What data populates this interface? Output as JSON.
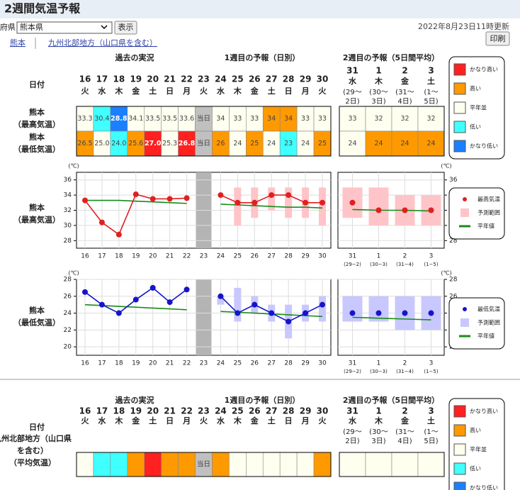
{
  "header": {
    "title": "2週間気温予報",
    "pref_label": "府県",
    "pref_select": "熊本県",
    "show_button": "表示",
    "updated": "2022年8月23日11時更新",
    "print_button": "印刷"
  },
  "links": [
    "熊本",
    "九州北部地方（山口県を含む）"
  ],
  "sections": [
    "過去の実況",
    "1週目の予報（日別）",
    "2週目の予報（5日間平均）"
  ],
  "date_label": "日付",
  "days": [
    {
      "date": "16",
      "weekday": "火"
    },
    {
      "date": "17",
      "weekday": "水"
    },
    {
      "date": "18",
      "weekday": "木"
    },
    {
      "date": "19",
      "weekday": "金"
    },
    {
      "date": "20",
      "weekday": "土"
    },
    {
      "date": "21",
      "weekday": "日"
    },
    {
      "date": "22",
      "weekday": "月"
    },
    {
      "date": "23",
      "weekday": "火"
    },
    {
      "date": "24",
      "weekday": "水"
    },
    {
      "date": "25",
      "weekday": "木"
    },
    {
      "date": "26",
      "weekday": "金"
    },
    {
      "date": "27",
      "weekday": "土"
    },
    {
      "date": "28",
      "weekday": "日"
    },
    {
      "date": "29",
      "weekday": "月"
    },
    {
      "date": "30",
      "weekday": "火"
    }
  ],
  "week2_days": [
    {
      "date": "31",
      "weekday": "水",
      "period": [
        "(29～",
        "2日)"
      ]
    },
    {
      "date": "1",
      "weekday": "木",
      "period": [
        "(30～",
        "3日)"
      ]
    },
    {
      "date": "2",
      "weekday": "金",
      "period": [
        "(31～",
        "4日)"
      ]
    },
    {
      "date": "3",
      "weekday": "土",
      "period": [
        "(1～",
        "5日)"
      ]
    }
  ],
  "legend": [
    {
      "label": "かなり高い",
      "color": "#ff2020"
    },
    {
      "label": "高い",
      "color": "#ff9900"
    },
    {
      "label": "平年並",
      "color": "#fffff0"
    },
    {
      "label": "低い",
      "color": "#40ffff"
    },
    {
      "label": "かなり低い",
      "color": "#1a80ff"
    }
  ],
  "tables": [
    {
      "rows": [
        {
          "label": [
            "熊本",
            "（最高気温）"
          ],
          "cells": [
            {
              "text": "33.3",
              "color": "#fffff0"
            },
            {
              "text": "30.4",
              "color": "#40ffff"
            },
            {
              "text": "28.8",
              "color": "#1a80ff"
            },
            {
              "text": "34.1",
              "color": "#fffff0"
            },
            {
              "text": "33.5",
              "color": "#fffff0"
            },
            {
              "text": "33.5",
              "color": "#fffff0"
            },
            {
              "text": "33.6",
              "color": "#fffff0"
            },
            {
              "text": "当日",
              "color": "#c0c0c0"
            },
            {
              "text": "34",
              "color": "#fffff0"
            },
            {
              "text": "33",
              "color": "#fffff0"
            },
            {
              "text": "33",
              "color": "#fffff0"
            },
            {
              "text": "34",
              "color": "#ff9900"
            },
            {
              "text": "34",
              "color": "#ff9900"
            },
            {
              "text": "33",
              "color": "#fffff0"
            },
            {
              "text": "33",
              "color": "#fffff0"
            }
          ],
          "week2_cells": [
            {
              "text": "33",
              "color": "#fffff0"
            },
            {
              "text": "32",
              "color": "#fffff0"
            },
            {
              "text": "32",
              "color": "#fffff0"
            },
            {
              "text": "32",
              "color": "#fffff0"
            }
          ]
        },
        {
          "label": [
            "熊本",
            "（最低気温）"
          ],
          "cells": [
            {
              "text": "26.5",
              "color": "#ff9900"
            },
            {
              "text": "25.0",
              "color": "#fffff0"
            },
            {
              "text": "24.0",
              "color": "#40ffff"
            },
            {
              "text": "25.6",
              "color": "#ff9900"
            },
            {
              "text": "27.0",
              "color": "#ff2020"
            },
            {
              "text": "25.3",
              "color": "#fffff0"
            },
            {
              "text": "26.8",
              "color": "#ff2020"
            },
            {
              "text": "当日",
              "color": "#c0c0c0"
            },
            {
              "text": "26",
              "color": "#ff9900"
            },
            {
              "text": "24",
              "color": "#fffff0"
            },
            {
              "text": "25",
              "color": "#ff9900"
            },
            {
              "text": "24",
              "color": "#fffff0"
            },
            {
              "text": "23",
              "color": "#40ffff"
            },
            {
              "text": "24",
              "color": "#fffff0"
            },
            {
              "text": "25",
              "color": "#ff9900"
            }
          ],
          "week2_cells": [
            {
              "text": "24",
              "color": "#fffff0"
            },
            {
              "text": "24",
              "color": "#ff9900"
            },
            {
              "text": "24",
              "color": "#ff9900"
            },
            {
              "text": "24",
              "color": "#ff9900"
            }
          ]
        }
      ]
    },
    {
      "rows": [
        {
          "label": [
            "九州北部地方（山口県",
            "を含む）",
            "（平均気温）"
          ],
          "cells": [
            {
              "color": "#fffff0"
            },
            {
              "color": "#40ffff"
            },
            {
              "color": "#40ffff"
            },
            {
              "color": "#ff9900"
            },
            {
              "color": "#ff2020"
            },
            {
              "color": "#ff9900"
            },
            {
              "color": "#ff9900"
            },
            {
              "text": "当日",
              "color": "#c0c0c0"
            },
            {
              "color": "#ff9900"
            },
            {
              "color": "#fffff0"
            },
            {
              "color": "#fffff0"
            },
            {
              "color": "#fffff0"
            },
            {
              "color": "#fffff0"
            },
            {
              "color": "#fffff0"
            },
            {
              "color": "#ff9900"
            }
          ],
          "week2_cells": [
            {
              "color": "#fffff0"
            },
            {
              "color": "#fffff0"
            },
            {
              "color": "#fffff0"
            },
            {
              "color": "#fffff0"
            }
          ]
        }
      ]
    }
  ],
  "chart_data": [
    {
      "type": "line",
      "row_label": [
        "熊本",
        "（最高気温）"
      ],
      "unit": "(℃)",
      "grid": true,
      "categories": [
        "16",
        "17",
        "18",
        "19",
        "20",
        "21",
        "22",
        "23",
        "24",
        "25",
        "26",
        "27",
        "28",
        "29",
        "30"
      ],
      "week2_categories": [
        "31",
        "1",
        "2",
        "3"
      ],
      "week2_subcategories": [
        "(29−2)",
        "(30−3)",
        "(31−4)",
        "(1−5)"
      ],
      "ylim": [
        27,
        37
      ],
      "yticks": [
        28,
        30,
        32,
        34,
        36
      ],
      "series": [
        {
          "name": "最高気温",
          "color": "#e02020",
          "values": [
            33.3,
            30.4,
            28.8,
            34.1,
            33.5,
            33.5,
            33.6,
            null,
            34,
            33,
            33,
            34,
            34,
            33,
            33
          ],
          "week2_values": [
            33,
            32,
            32,
            32
          ]
        },
        {
          "name": "予測範囲",
          "color": "#ffc4c8",
          "low": [
            null,
            null,
            null,
            null,
            null,
            null,
            null,
            null,
            null,
            30,
            31,
            32,
            31,
            31,
            30
          ],
          "high": [
            null,
            null,
            null,
            null,
            null,
            null,
            null,
            null,
            null,
            35,
            35,
            35,
            35,
            35,
            35
          ],
          "week2_low": [
            31,
            30,
            30,
            30
          ],
          "week2_high": [
            35,
            35,
            34,
            34
          ]
        },
        {
          "name": "平年値",
          "color": "#1a8a1a",
          "values": [
            33.3,
            33.3,
            33.3,
            33.2,
            33.1,
            33.0,
            32.9,
            null,
            32.8,
            32.7,
            32.6,
            32.5,
            32.4,
            32.4,
            32.3
          ],
          "week2_values": [
            32.1,
            32.0,
            32.0,
            31.9
          ]
        }
      ]
    },
    {
      "type": "line",
      "row_label": [
        "熊本",
        "（最低気温）"
      ],
      "unit": "(℃)",
      "grid": true,
      "categories": [
        "16",
        "17",
        "18",
        "19",
        "20",
        "21",
        "22",
        "23",
        "24",
        "25",
        "26",
        "27",
        "28",
        "29",
        "30"
      ],
      "week2_categories": [
        "31",
        "1",
        "2",
        "3"
      ],
      "week2_subcategories": [
        "(29−2)",
        "(30−3)",
        "(31−4)",
        "(1−5)"
      ],
      "ylim": [
        19,
        28
      ],
      "yticks": [
        20,
        22,
        24,
        26,
        28
      ],
      "series": [
        {
          "name": "最低気温",
          "color": "#1414cc",
          "values": [
            26.5,
            25.0,
            24.0,
            25.6,
            27.0,
            25.3,
            26.8,
            null,
            26,
            24,
            25,
            24,
            23,
            24,
            25
          ],
          "week2_values": [
            24,
            24,
            24,
            24
          ]
        },
        {
          "name": "予測範囲",
          "color": "#c8c8ff",
          "low": [
            null,
            null,
            null,
            null,
            null,
            null,
            null,
            null,
            25,
            23,
            24,
            23,
            21,
            23,
            23
          ],
          "high": [
            null,
            null,
            null,
            null,
            null,
            null,
            null,
            null,
            26,
            27,
            26,
            25,
            25,
            25,
            26
          ],
          "week2_low": [
            23,
            23,
            22,
            22
          ],
          "week2_high": [
            26,
            26,
            26,
            26
          ]
        },
        {
          "name": "平年値",
          "color": "#1a8a1a",
          "values": [
            25.0,
            24.9,
            24.8,
            24.7,
            24.6,
            24.5,
            24.4,
            null,
            24.2,
            24.1,
            24.0,
            23.9,
            23.8,
            23.7,
            23.6
          ],
          "week2_values": [
            23.5,
            23.4,
            23.3,
            23.2
          ]
        }
      ]
    }
  ]
}
